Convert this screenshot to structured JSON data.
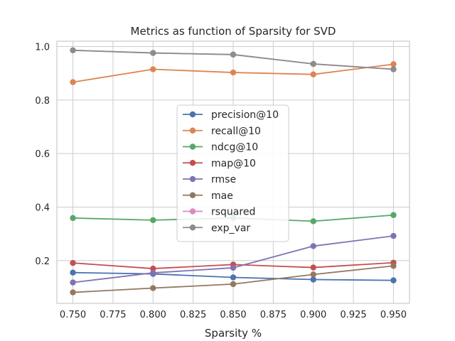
{
  "chart_data": {
    "type": "line",
    "title": "Metrics as function of Sparsity for SVD",
    "xlabel": "Sparsity %",
    "ylabel": "",
    "x": [
      0.75,
      0.8,
      0.85,
      0.9,
      0.95
    ],
    "xlim": [
      0.74,
      0.96
    ],
    "ylim": [
      0.04,
      1.02
    ],
    "xticks": [
      "0.750",
      "0.775",
      "0.800",
      "0.825",
      "0.850",
      "0.875",
      "0.900",
      "0.925",
      "0.950"
    ],
    "xtick_values": [
      0.75,
      0.775,
      0.8,
      0.825,
      0.85,
      0.875,
      0.9,
      0.925,
      0.95
    ],
    "yticks": [
      "0.2",
      "0.4",
      "0.6",
      "0.8",
      "1.0"
    ],
    "ytick_values": [
      0.2,
      0.4,
      0.6,
      0.8,
      1.0
    ],
    "grid": true,
    "legend_position": "center",
    "series": [
      {
        "name": "precision@10",
        "color": "#4c72b0",
        "values": [
          0.155,
          0.15,
          0.137,
          0.129,
          0.126
        ]
      },
      {
        "name": "recall@10",
        "color": "#dd8452",
        "values": [
          0.867,
          0.915,
          0.903,
          0.896,
          0.934
        ]
      },
      {
        "name": "ndcg@10",
        "color": "#55a868",
        "values": [
          0.359,
          0.351,
          0.359,
          0.347,
          0.37
        ]
      },
      {
        "name": "map@10",
        "color": "#c44e52",
        "values": [
          0.191,
          0.17,
          0.185,
          0.174,
          0.192
        ]
      },
      {
        "name": "rmse",
        "color": "#8172b3",
        "values": [
          0.118,
          0.154,
          0.173,
          0.254,
          0.292
        ]
      },
      {
        "name": "mae",
        "color": "#937860",
        "values": [
          0.081,
          0.097,
          0.112,
          0.148,
          0.18
        ]
      },
      {
        "name": "rsquared",
        "color": "#da8bc3",
        "values": [
          0.986,
          0.976,
          0.97,
          0.935,
          0.915
        ]
      },
      {
        "name": "exp_var",
        "color": "#8c8c8c",
        "values": [
          0.986,
          0.976,
          0.97,
          0.935,
          0.915
        ]
      }
    ]
  }
}
